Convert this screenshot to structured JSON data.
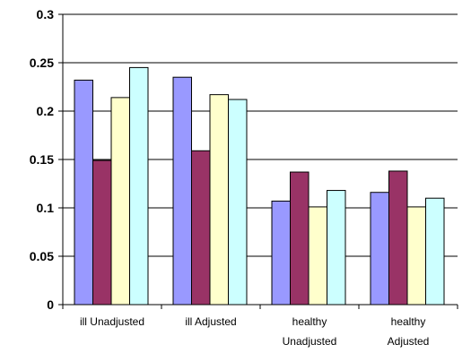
{
  "chart_data": {
    "type": "bar",
    "title": "",
    "xlabel": "",
    "ylabel": "",
    "ylim": [
      0,
      0.3
    ],
    "yticks": [
      "0",
      "0.05",
      "0.1",
      "0.15",
      "0.2",
      "0.25",
      "0.3"
    ],
    "grid": true,
    "legend": "none",
    "categories": [
      [
        "ill Unadjusted"
      ],
      [
        "ill Adjusted"
      ],
      [
        "healthy",
        "Unadjusted"
      ],
      [
        "healthy",
        "Adjusted"
      ]
    ],
    "series": [
      {
        "color": "#9999ff",
        "values": [
          0.232,
          0.235,
          0.107,
          0.116
        ]
      },
      {
        "color": "#993366",
        "values": [
          0.149,
          0.159,
          0.137,
          0.138
        ]
      },
      {
        "color": "#ffffcc",
        "values": [
          0.214,
          0.217,
          0.101,
          0.101
        ]
      },
      {
        "color": "#ccffff",
        "values": [
          0.245,
          0.212,
          0.118,
          0.11
        ]
      }
    ]
  }
}
